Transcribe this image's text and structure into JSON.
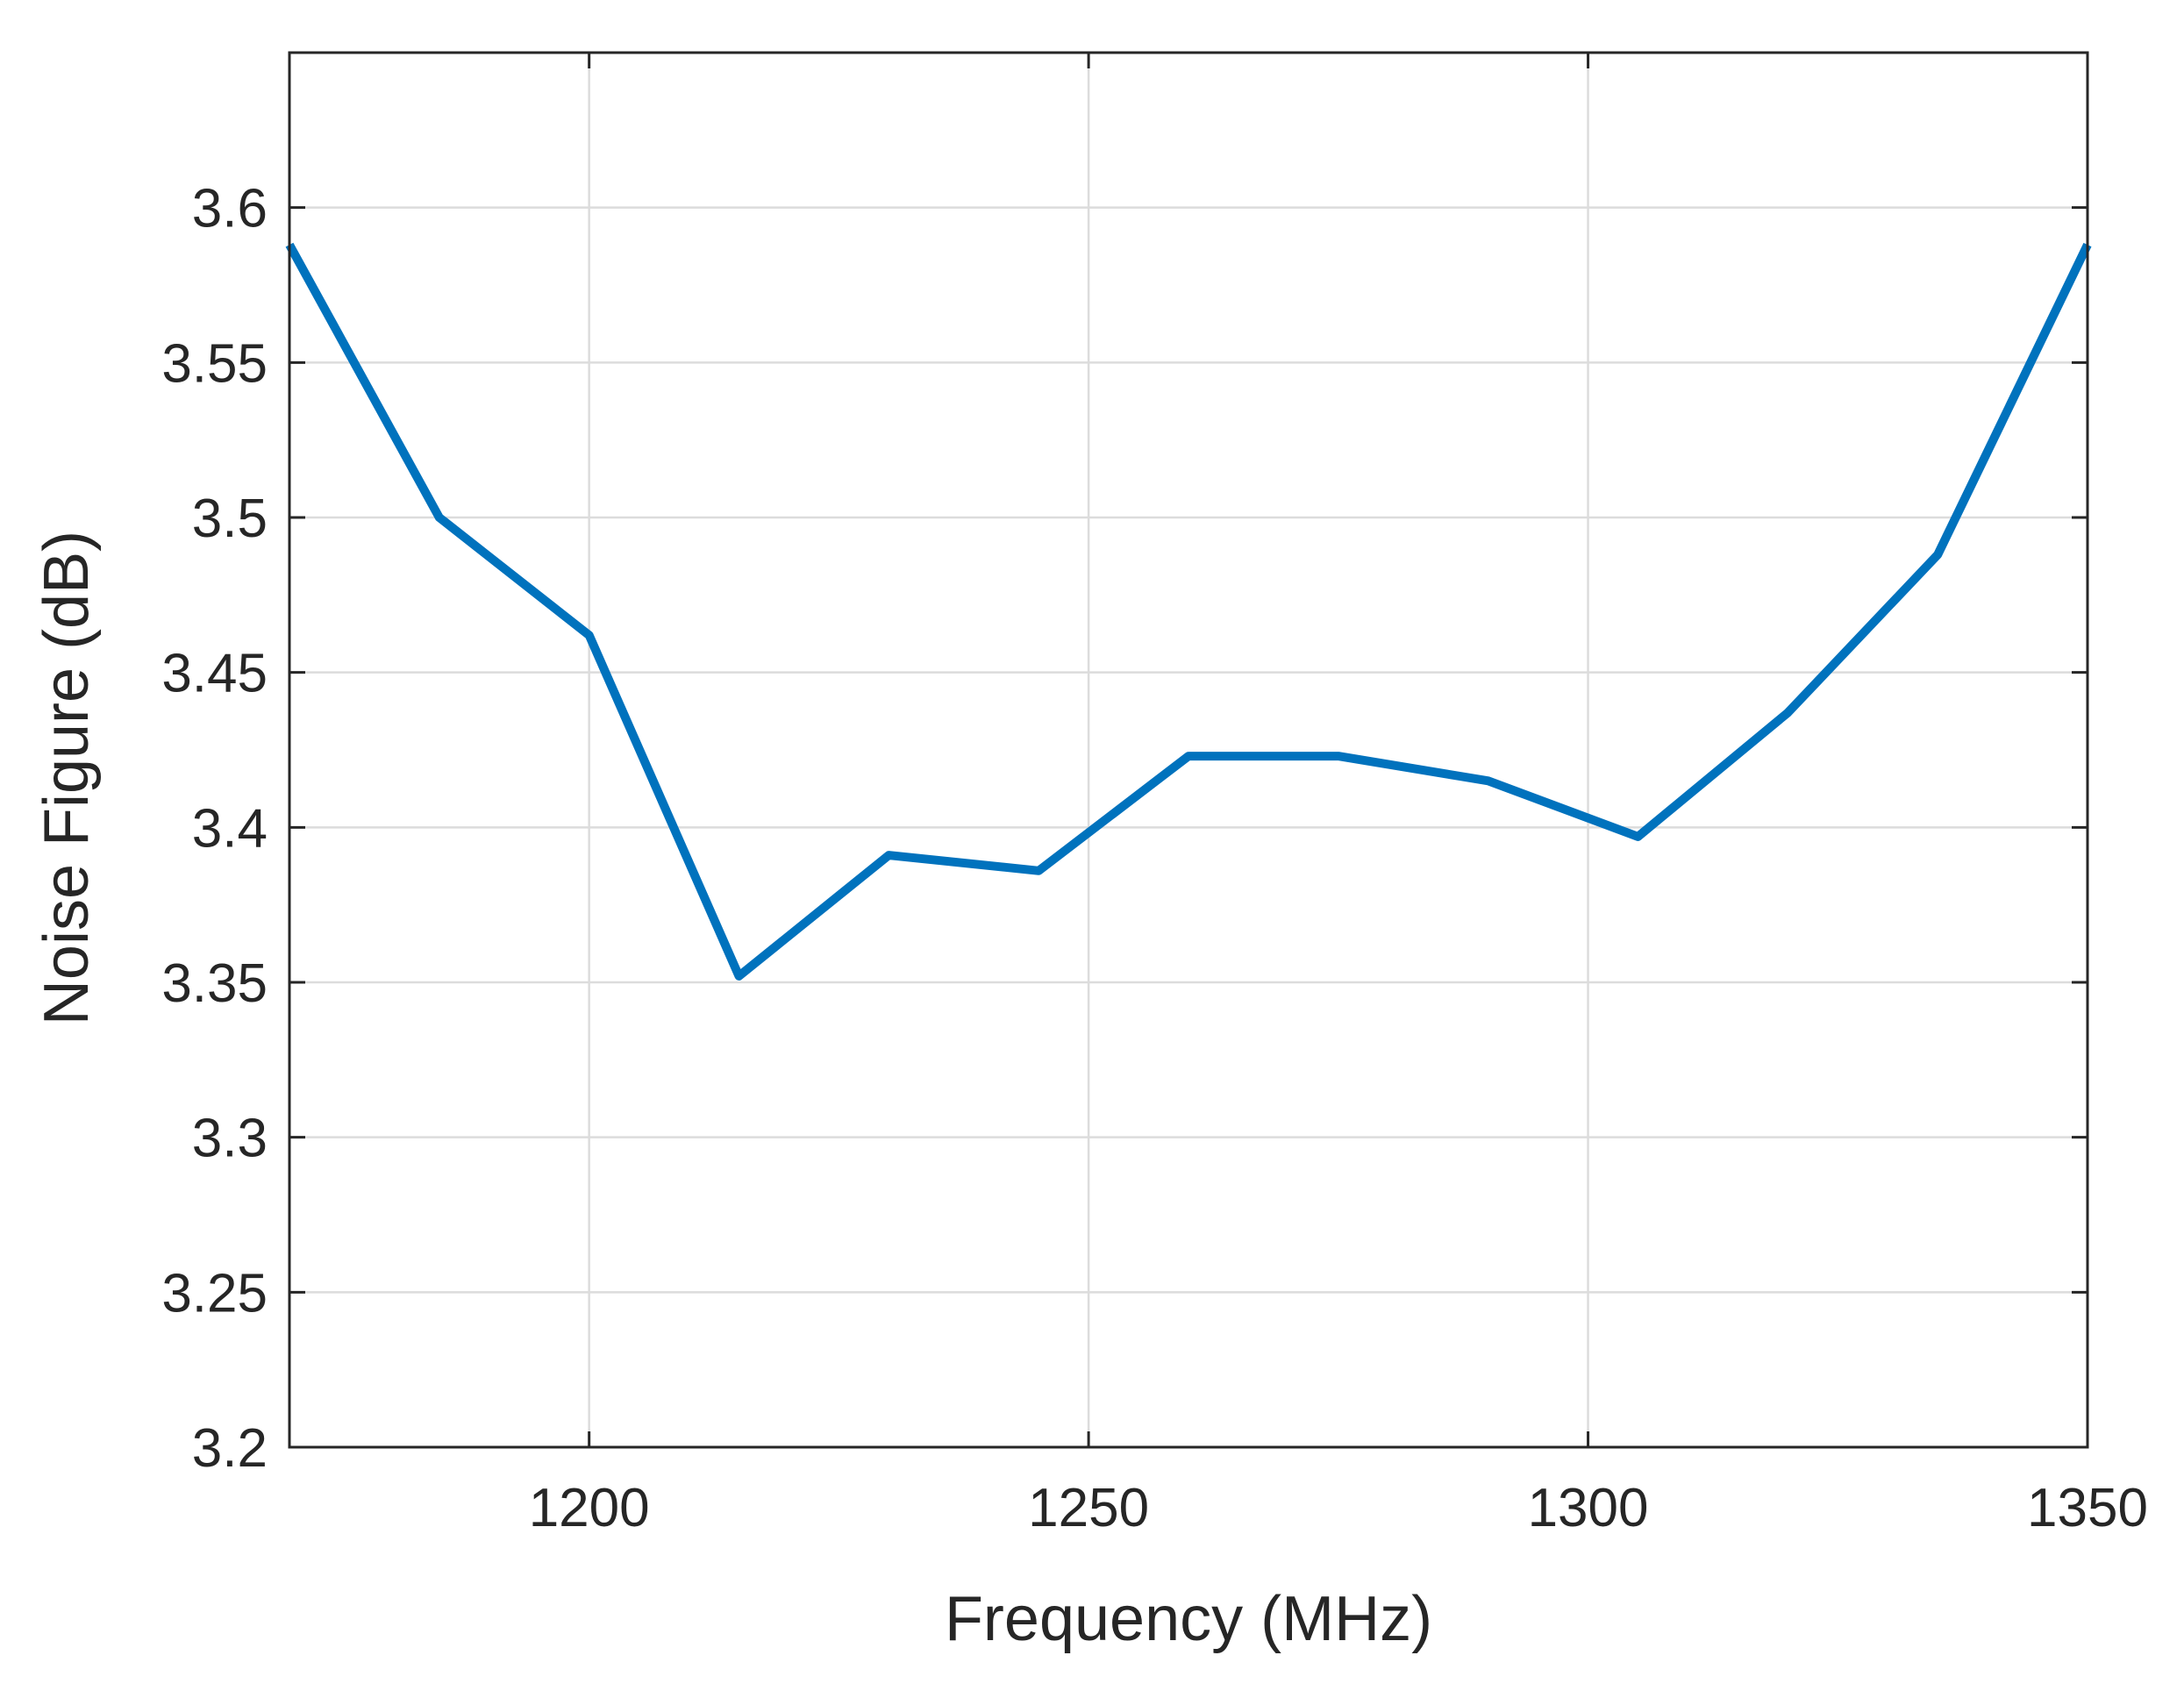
{
  "chart_data": {
    "type": "line",
    "title": "",
    "xlabel": "Frequency (MHz)",
    "ylabel": "Noise Figure (dB)",
    "xlim": [
      1170,
      1350
    ],
    "ylim": [
      3.2,
      3.65
    ],
    "grid": true,
    "xticks": [
      1200,
      1250,
      1300,
      1350
    ],
    "xtick_labels": [
      "1200",
      "1250",
      "1300",
      "1350"
    ],
    "yticks": [
      3.2,
      3.25,
      3.3,
      3.35,
      3.4,
      3.45,
      3.5,
      3.55,
      3.6
    ],
    "ytick_labels": [
      "3.2",
      "3.25",
      "3.3",
      "3.35",
      "3.4",
      "3.45",
      "3.5",
      "3.55",
      "3.6"
    ],
    "series": [
      {
        "color": "#0072bd",
        "x": [
          1170,
          1185,
          1200,
          1215,
          1230,
          1245,
          1260,
          1275,
          1290,
          1305,
          1320,
          1335,
          1350
        ],
        "y": [
          3.588,
          3.5,
          3.462,
          3.352,
          3.391,
          3.386,
          3.423,
          3.423,
          3.415,
          3.397,
          3.437,
          3.488,
          3.588
        ]
      }
    ]
  }
}
